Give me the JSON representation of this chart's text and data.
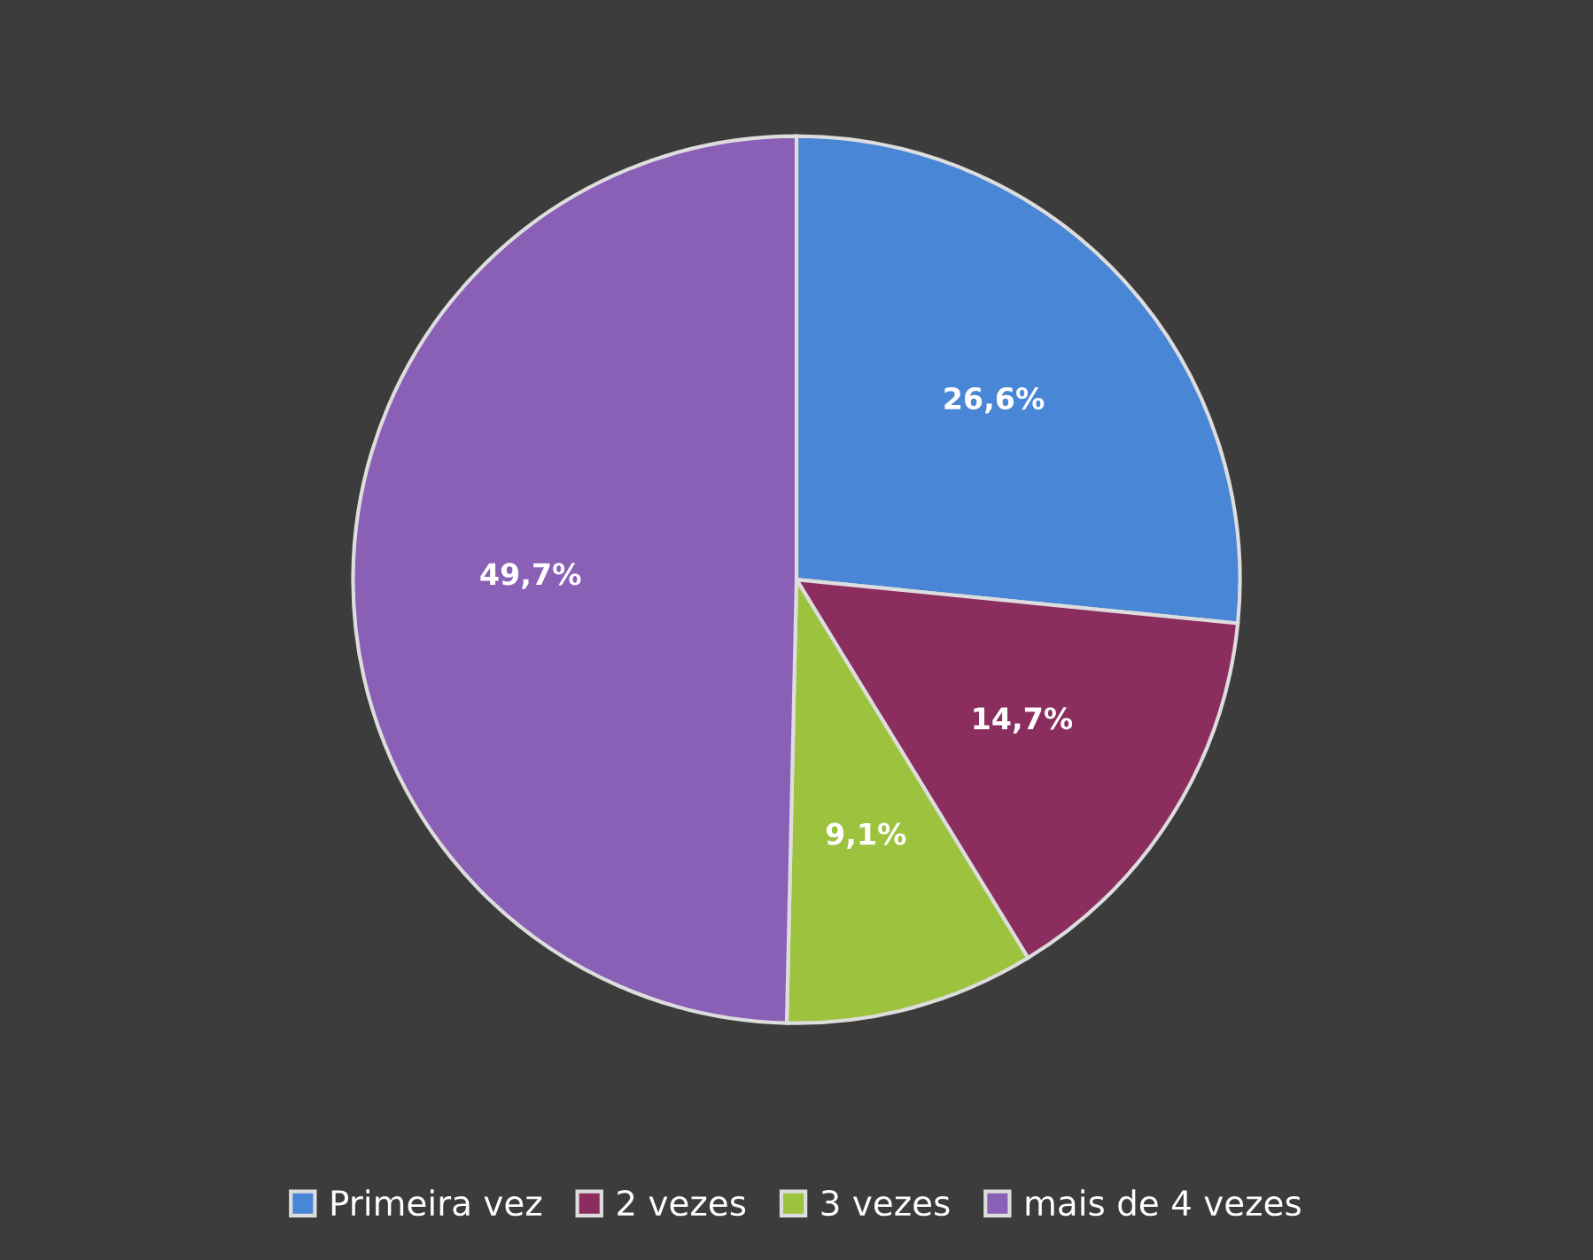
{
  "chart_data": {
    "type": "pie",
    "categories": [
      "Primeira vez",
      "2 vezes",
      "3 vezes",
      "mais de 4 vezes"
    ],
    "values": [
      26.6,
      14.7,
      9.1,
      49.7
    ],
    "value_labels": [
      "26,6%",
      "14,7%",
      "9,1%",
      "49,7%"
    ],
    "colors": [
      "#4a86d6",
      "#8c2d5f",
      "#9cc23e",
      "#8a5fb6"
    ],
    "legend": "bottom"
  }
}
